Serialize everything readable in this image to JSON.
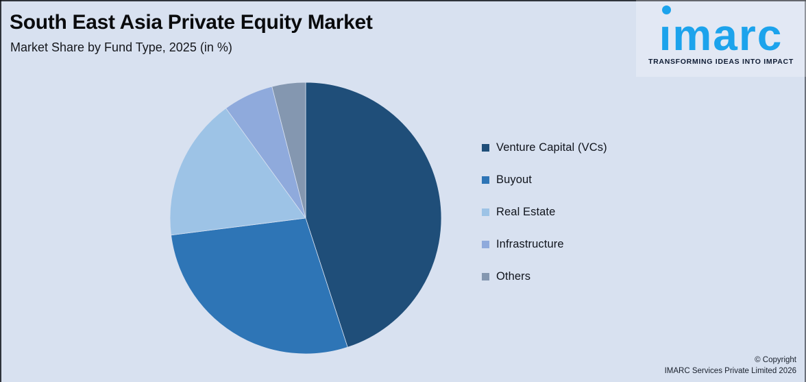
{
  "page": {
    "background_color": "#D8E1F0"
  },
  "header": {
    "title": "South East Asia Private Equity Market",
    "subtitle": "Market Share by Fund Type, 2025 (in %)"
  },
  "logo": {
    "wordmark": "imarc",
    "wordmark_display": "ımarc",
    "tagline": "TRANSFORMING IDEAS INTO IMPACT",
    "brand_color": "#1CA3EC",
    "tagline_color": "#0E1B33"
  },
  "chart_data": {
    "type": "pie",
    "title": "South East Asia Private Equity Market",
    "subtitle": "Market Share by Fund Type, 2025 (in %)",
    "unit": "%",
    "categories": [
      "Venture Capital (VCs)",
      "Buyout",
      "Real Estate",
      "Infrastructure",
      "Others"
    ],
    "values": [
      45,
      28,
      17,
      6,
      4
    ],
    "colors": [
      "#1F4E79",
      "#2E75B6",
      "#9DC3E6",
      "#8FAADC",
      "#8497B0"
    ],
    "start_angle_deg": 0,
    "direction": "clockwise",
    "legend_position": "right",
    "data_labels": false,
    "slice_separator_color": "#D8E1F0"
  },
  "footer": {
    "copyright_line1": "© Copyright",
    "copyright_line2": "IMARC Services Private Limited 2026"
  }
}
